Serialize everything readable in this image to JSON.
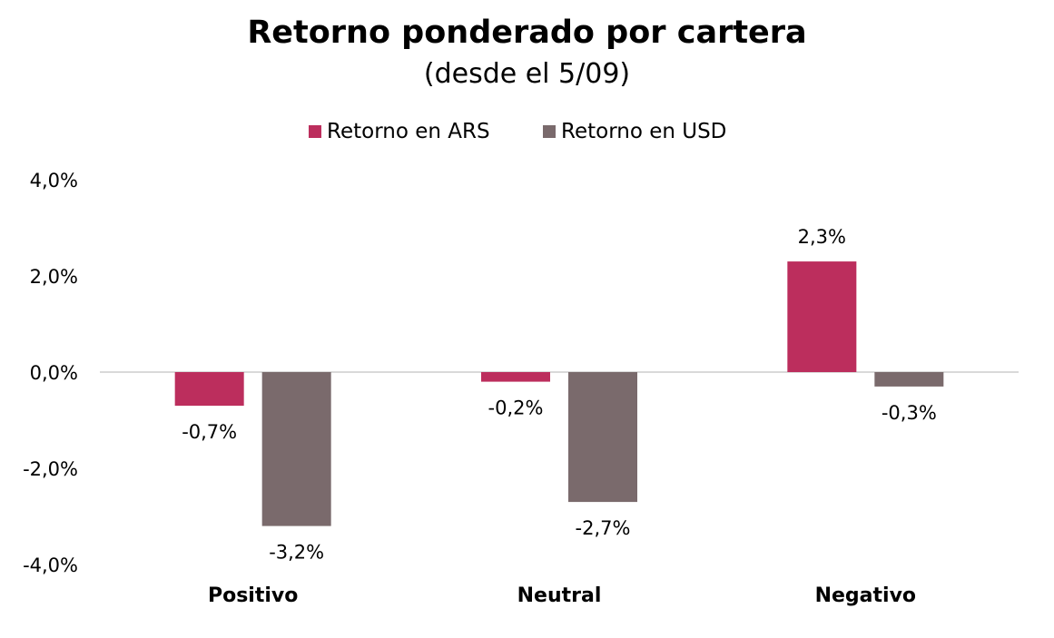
{
  "title": "Retorno ponderado por cartera",
  "subtitle": "(desde el 5/09)",
  "chart_data": {
    "type": "bar",
    "title": "Retorno ponderado por cartera",
    "subtitle": "(desde el 5/09)",
    "categories": [
      "Positivo",
      "Neutral",
      "Negativo"
    ],
    "series": [
      {
        "name": "Retorno en ARS",
        "values": [
          -0.7,
          -0.2,
          2.3
        ],
        "labels": [
          "-0,7%",
          "-0,2%",
          "2,3%"
        ],
        "color": "#BC2E5D"
      },
      {
        "name": "Retorno en USD",
        "values": [
          -3.2,
          -2.7,
          -0.3
        ],
        "labels": [
          "-3,2%",
          "-2,7%",
          "-0,3%"
        ],
        "color": "#7A6A6C"
      }
    ],
    "ylim": [
      -4,
      4
    ],
    "yticks": [
      4,
      2,
      0,
      -2,
      -4
    ],
    "ytick_labels": [
      "4,0%",
      "2,0%",
      "0,0%",
      "-2,0%",
      "-4,0%"
    ],
    "grid": false,
    "zero_line_color": "#D9D9D9",
    "legend": "top-center"
  }
}
